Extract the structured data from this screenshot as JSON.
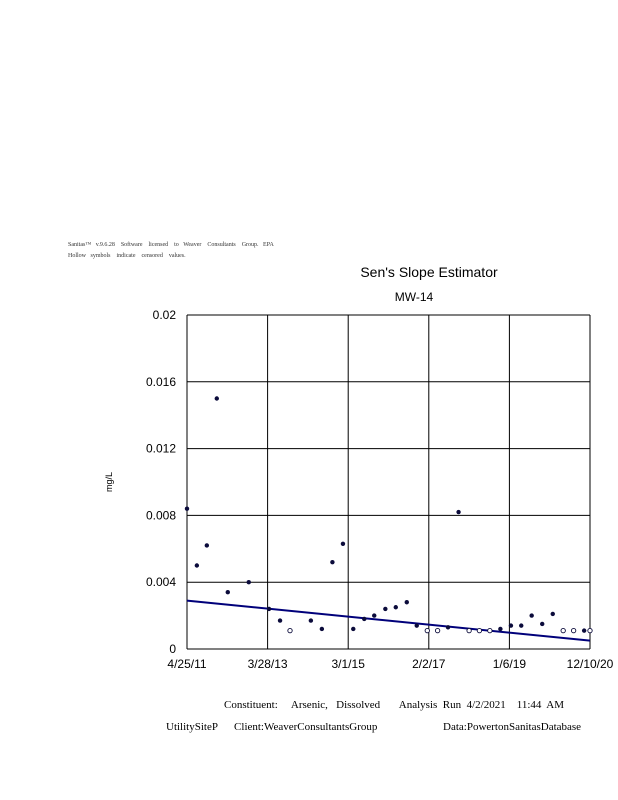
{
  "header": {
    "license_line": "Sanitas™   v.9.6.28    Software    licensed    to   Weaver    Consultants    Group.   EPA",
    "censored_note": "Hollow   symbols    indicate    censored    values."
  },
  "footer": {
    "line1": "Constituent:     Arsenic,   Dissolved       Analysis  Run  4/2/2021    11:44  AM",
    "line2_left": "UtilitySiteP      Client:WeaverConsultantsGroup",
    "line2_right": "Data:PowertonSanitasDatabase"
  },
  "chart_data": {
    "type": "scatter",
    "title": "Sen's Slope Estimator",
    "subtitle": "MW-14",
    "xlabel": "",
    "ylabel": "mg/L",
    "x_tick_labels": [
      "4/25/11",
      "3/28/13",
      "3/1/15",
      "2/2/17",
      "1/6/19",
      "12/10/20"
    ],
    "x_range": [
      "2011-04-25",
      "2020-12-10"
    ],
    "y_ticks": [
      0,
      0.004,
      0.008,
      0.012,
      0.016,
      0.02
    ],
    "y_tick_labels": [
      "0",
      "0.004",
      "0.008",
      "0.012",
      "0.016",
      "0.02"
    ],
    "ylim": [
      0,
      0.02
    ],
    "grid": true,
    "colors": {
      "points": "#0b0b3b",
      "trend": "#00007a",
      "grid": "#000000"
    },
    "series": [
      {
        "values": [
          {
            "x": "2011-04-25",
            "y": 0.0084,
            "censored": false
          },
          {
            "x": "2011-07-20",
            "y": 0.005,
            "censored": false
          },
          {
            "x": "2011-10-15",
            "y": 0.0062,
            "censored": false
          },
          {
            "x": "2012-01-10",
            "y": 0.015,
            "censored": false
          },
          {
            "x": "2012-04-15",
            "y": 0.0034,
            "censored": false
          },
          {
            "x": "2012-10-15",
            "y": 0.004,
            "censored": false
          },
          {
            "x": "2013-04-10",
            "y": 0.0024,
            "censored": false
          },
          {
            "x": "2013-07-15",
            "y": 0.0017,
            "censored": false
          },
          {
            "x": "2013-10-10",
            "y": 0.0011,
            "censored": true
          },
          {
            "x": "2014-04-10",
            "y": 0.0017,
            "censored": false
          },
          {
            "x": "2014-07-15",
            "y": 0.0012,
            "censored": false
          },
          {
            "x": "2014-10-15",
            "y": 0.0052,
            "censored": false
          },
          {
            "x": "2015-01-15",
            "y": 0.0063,
            "censored": false
          },
          {
            "x": "2015-04-15",
            "y": 0.0012,
            "censored": false
          },
          {
            "x": "2015-07-20",
            "y": 0.0018,
            "censored": false
          },
          {
            "x": "2015-10-15",
            "y": 0.002,
            "censored": false
          },
          {
            "x": "2016-01-20",
            "y": 0.0024,
            "censored": false
          },
          {
            "x": "2016-04-20",
            "y": 0.0025,
            "censored": false
          },
          {
            "x": "2016-07-25",
            "y": 0.0028,
            "censored": false
          },
          {
            "x": "2016-10-20",
            "y": 0.0014,
            "censored": false
          },
          {
            "x": "2017-01-20",
            "y": 0.0011,
            "censored": true
          },
          {
            "x": "2017-04-20",
            "y": 0.0011,
            "censored": true
          },
          {
            "x": "2017-07-20",
            "y": 0.0013,
            "censored": false
          },
          {
            "x": "2017-10-20",
            "y": 0.0082,
            "censored": false
          },
          {
            "x": "2018-01-20",
            "y": 0.0011,
            "censored": true
          },
          {
            "x": "2018-04-20",
            "y": 0.0011,
            "censored": true
          },
          {
            "x": "2018-07-20",
            "y": 0.0011,
            "censored": true
          },
          {
            "x": "2018-10-20",
            "y": 0.0012,
            "censored": false
          },
          {
            "x": "2019-01-20",
            "y": 0.0014,
            "censored": false
          },
          {
            "x": "2019-04-20",
            "y": 0.0014,
            "censored": false
          },
          {
            "x": "2019-07-20",
            "y": 0.002,
            "censored": false
          },
          {
            "x": "2019-10-20",
            "y": 0.0015,
            "censored": false
          },
          {
            "x": "2020-01-20",
            "y": 0.0021,
            "censored": false
          },
          {
            "x": "2020-04-20",
            "y": 0.0011,
            "censored": true
          },
          {
            "x": "2020-07-20",
            "y": 0.0011,
            "censored": true
          },
          {
            "x": "2020-10-20",
            "y": 0.0011,
            "censored": false
          },
          {
            "x": "2020-12-10",
            "y": 0.0011,
            "censored": true
          }
        ]
      }
    ],
    "trend_line": {
      "x": [
        "2011-04-25",
        "2020-12-10"
      ],
      "y": [
        0.0029,
        0.0005
      ]
    }
  }
}
